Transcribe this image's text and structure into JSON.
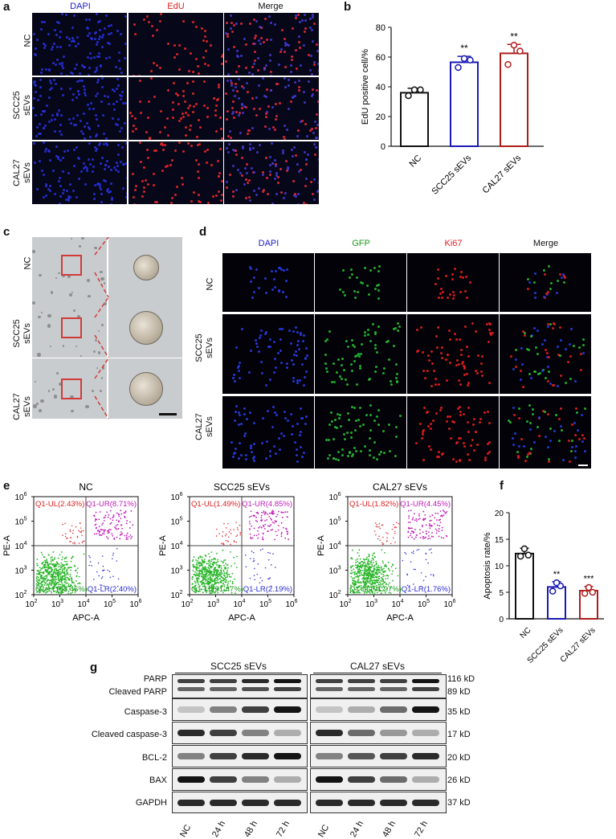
{
  "panels": {
    "a": "a",
    "b": "b",
    "c": "c",
    "d": "d",
    "e": "e",
    "f": "f",
    "g": "g"
  },
  "a": {
    "columns": [
      "DAPI",
      "EdU",
      "Merge"
    ],
    "rows": [
      {
        "l1": "NC",
        "l2": ""
      },
      {
        "l1": "SCC25",
        "l2": "sEVs"
      },
      {
        "l1": "CAL27",
        "l2": "sEVs"
      }
    ],
    "colors": {
      "DAPI": "#1b1bcc",
      "EdU": "#e02020",
      "Merge": "#111111"
    }
  },
  "c": {
    "rows": [
      {
        "l1": "NC",
        "l2": ""
      },
      {
        "l1": "SCC25",
        "l2": "sEVs"
      },
      {
        "l1": "CAL27",
        "l2": "sEVs"
      }
    ]
  },
  "d": {
    "columns": [
      "DAPI",
      "GFP",
      "Ki67",
      "Merge"
    ],
    "rows": [
      {
        "l1": "NC",
        "l2": ""
      },
      {
        "l1": "SCC25",
        "l2": "sEVs"
      },
      {
        "l1": "CAL27",
        "l2": "sEVs"
      }
    ]
  },
  "e": {
    "xlabel": "APC-A",
    "ylabel": "PE-A",
    "plots": [
      {
        "title": "NC",
        "ul": "Q1-UL(2.43%)",
        "ur": "Q1-UR(8.71%)",
        "ll": "Q1-LL(86.46%)",
        "lr": "Q1-LR(2.40%)"
      },
      {
        "title": "SCC25 sEVs",
        "ul": "Q1-UL(1.49%)",
        "ur": "Q1-UR(4.85%)",
        "ll": "Q1-LL(91.47%)",
        "lr": "Q1-LR(2.19%)"
      },
      {
        "title": "CAL27 sEVs",
        "ul": "Q1-UL(1.82%)",
        "ur": "Q1-UR(4.45%)",
        "ll": "Q1-LL(91.97%)",
        "lr": "Q1-LR(1.76%)"
      }
    ],
    "xticks": [
      "10",
      "10",
      "10",
      "10",
      "10"
    ],
    "xexp": [
      "2",
      "3",
      "4",
      "5",
      "6"
    ],
    "yticks": [
      "10",
      "10",
      "10",
      "10",
      "10"
    ],
    "yexp": [
      "2",
      "3",
      "4",
      "5",
      "6"
    ]
  },
  "g": {
    "groups": [
      "SCC25 sEVs",
      "CAL27 sEVs"
    ],
    "lanes": [
      "NC",
      "24 h",
      "48 h",
      "72 h",
      "NC",
      "24 h",
      "48 h",
      "72 h"
    ],
    "rows": [
      {
        "label": "PARP",
        "label2": "Cleaved PARP",
        "kd": "116 kD",
        "kd2": "89 kD"
      },
      {
        "label": "Caspase-3",
        "kd": "35 kD"
      },
      {
        "label": "Cleaved caspase-3",
        "kd": "17 kD"
      },
      {
        "label": "BCL-2",
        "kd": "20 kD"
      },
      {
        "label": "BAX",
        "kd": "26 kD"
      },
      {
        "label": "GAPDH",
        "kd": "37 kD"
      }
    ]
  },
  "chart_data": [
    {
      "type": "bar",
      "panel": "b",
      "title": "",
      "ylabel": "EdU positive cell/%",
      "xlabel": "",
      "categories": [
        "NC",
        "SCC25 sEVs",
        "CAL27 sEVs"
      ],
      "values": [
        36,
        56.5,
        62.5
      ],
      "errors": [
        3,
        4,
        6
      ],
      "points": [
        [
          34,
          38,
          38
        ],
        [
          53,
          58,
          59
        ],
        [
          55,
          64,
          68
        ]
      ],
      "significance": [
        "",
        "**",
        "**"
      ],
      "colors": [
        "#111111",
        "#1a1ab5",
        "#b01c1c"
      ],
      "ylim": [
        0,
        80
      ],
      "yticks": [
        0,
        20,
        40,
        60,
        80
      ]
    },
    {
      "type": "bar",
      "panel": "f",
      "title": "",
      "ylabel": "Apoptosis rate/%",
      "xlabel": "",
      "categories": [
        "NC",
        "SCC25 sEVs",
        "CAL27 sEVs"
      ],
      "values": [
        12.3,
        6.0,
        5.3
      ],
      "errors": [
        1.0,
        1.0,
        0.8
      ],
      "points": [
        [
          11.8,
          12.0,
          13.2
        ],
        [
          5.2,
          6.2,
          6.8
        ],
        [
          4.8,
          5.0,
          5.9
        ]
      ],
      "significance": [
        "",
        "**",
        "***"
      ],
      "colors": [
        "#111111",
        "#1a1ab5",
        "#b01c1c"
      ],
      "ylim": [
        0,
        20
      ],
      "yticks": [
        0,
        5,
        10,
        15,
        20
      ]
    }
  ]
}
